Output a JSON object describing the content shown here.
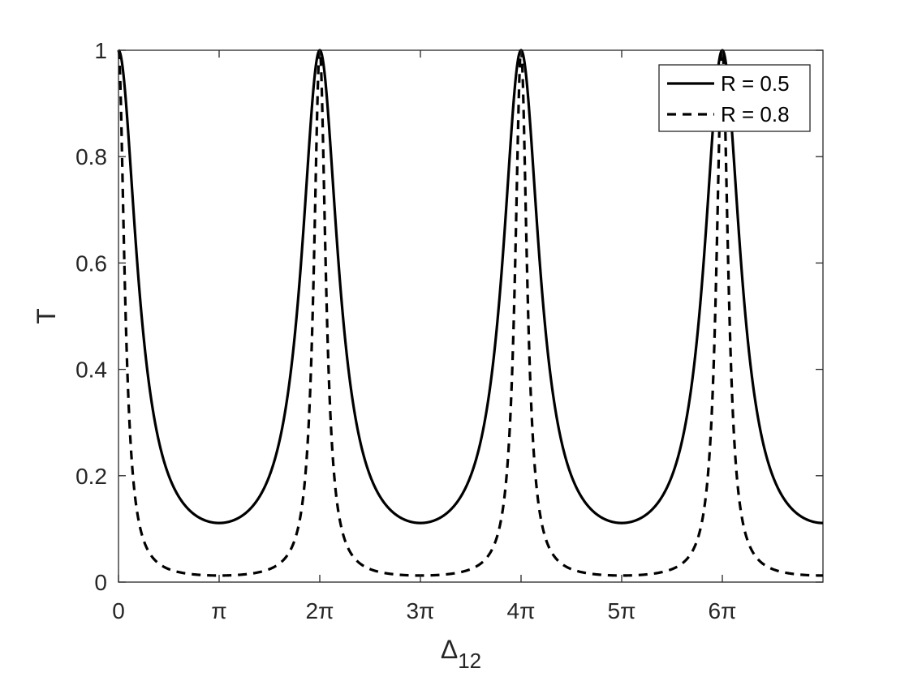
{
  "chart_data": {
    "type": "line",
    "title": "",
    "xlabel": "Δ",
    "xlabel_subscript": "12",
    "ylabel": "T",
    "xlim_in_pi": [
      0,
      7
    ],
    "ylim": [
      0,
      1
    ],
    "x_ticks": [
      {
        "value_in_pi": 0,
        "label": "0"
      },
      {
        "value_in_pi": 1,
        "label": "π"
      },
      {
        "value_in_pi": 2,
        "label": "2π"
      },
      {
        "value_in_pi": 3,
        "label": "3π"
      },
      {
        "value_in_pi": 4,
        "label": "4π"
      },
      {
        "value_in_pi": 5,
        "label": "5π"
      },
      {
        "value_in_pi": 6,
        "label": "6π"
      }
    ],
    "y_ticks": [
      {
        "value": 0,
        "label": "0"
      },
      {
        "value": 0.2,
        "label": "0.2"
      },
      {
        "value": 0.4,
        "label": "0.4"
      },
      {
        "value": 0.6,
        "label": "0.6"
      },
      {
        "value": 0.8,
        "label": "0.8"
      },
      {
        "value": 1,
        "label": "1"
      }
    ],
    "function": "T = (1-R)^2 / (1 + R^2 - 2R cos(Δ12))",
    "grid": false,
    "box": true,
    "legend_position": "top-right",
    "series": [
      {
        "name": "R = 0.5",
        "R": 0.5,
        "style": "solid",
        "color": "#000000",
        "min_T": 0.111,
        "max_T": 1.0
      },
      {
        "name": "R = 0.8",
        "R": 0.8,
        "style": "dashed",
        "color": "#000000",
        "min_T": 0.0123,
        "max_T": 1.0
      }
    ]
  }
}
